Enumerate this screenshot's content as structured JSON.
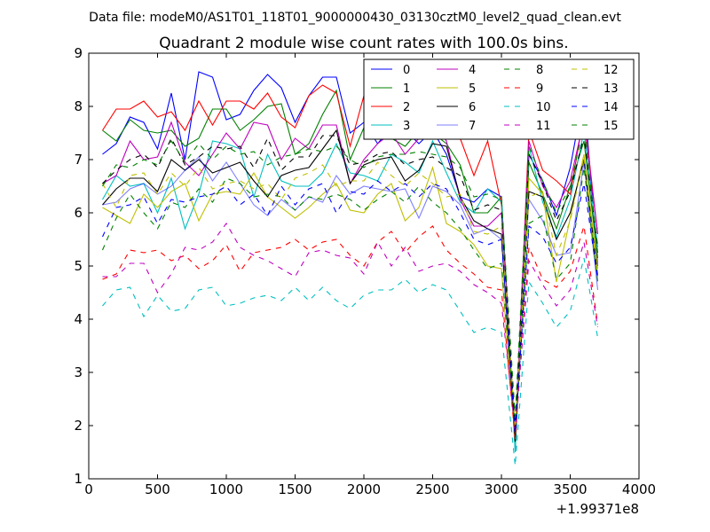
{
  "suptitle": "Data file: modeM0/AS1T01_118T01_9000000430_03130cztM0_level2_quad_clean.evt",
  "chart_data": {
    "type": "line",
    "title": "Quadrant 2 module wise count rates with 100.0s bins.",
    "xlabel": "",
    "ylabel": "",
    "x_offset_label": "+1.99371e8",
    "xlim": [
      0,
      4000
    ],
    "ylim": [
      1,
      9
    ],
    "x_ticks": [
      0,
      500,
      1000,
      1500,
      2000,
      2500,
      3000,
      3500,
      4000
    ],
    "y_ticks": [
      1,
      2,
      3,
      4,
      5,
      6,
      7,
      8,
      9
    ],
    "grid": false,
    "legend_position": "top-right",
    "x": [
      100,
      200,
      300,
      400,
      500,
      600,
      700,
      800,
      900,
      1000,
      1100,
      1200,
      1300,
      1400,
      1500,
      1600,
      1700,
      1800,
      1900,
      2000,
      2100,
      2200,
      2300,
      2400,
      2500,
      2600,
      2700,
      2800,
      2900,
      3000,
      3100,
      3200,
      3300,
      3400,
      3500,
      3600,
      3700
    ],
    "series": [
      {
        "name": "0",
        "color": "#0000ff",
        "dash": "solid",
        "values": [
          7.1,
          7.3,
          7.8,
          7.7,
          7.2,
          8.25,
          7.0,
          8.65,
          8.55,
          7.75,
          7.85,
          8.3,
          8.6,
          8.35,
          7.7,
          8.2,
          8.55,
          8.55,
          7.5,
          7.7,
          7.3,
          7.6,
          7.55,
          7.3,
          7.55,
          7.1,
          6.3,
          6.2,
          6.45,
          6.3,
          1.55,
          7.1,
          6.6,
          5.95,
          6.85,
          8.25,
          5.0
        ]
      },
      {
        "name": "1",
        "color": "#008000",
        "dash": "solid",
        "values": [
          7.55,
          7.35,
          7.75,
          7.55,
          7.5,
          7.55,
          7.25,
          7.4,
          7.95,
          7.95,
          7.55,
          7.75,
          8.0,
          8.05,
          7.1,
          7.3,
          7.85,
          8.3,
          7.0,
          7.6,
          7.7,
          7.4,
          7.25,
          7.55,
          7.5,
          7.3,
          6.9,
          6.0,
          6.0,
          6.3,
          1.65,
          6.95,
          6.35,
          5.7,
          6.5,
          7.35,
          5.15
        ]
      },
      {
        "name": "2",
        "color": "#ff0000",
        "dash": "solid",
        "values": [
          7.55,
          7.95,
          7.95,
          8.1,
          7.8,
          7.9,
          7.55,
          8.1,
          7.65,
          8.1,
          8.1,
          7.95,
          8.25,
          7.8,
          7.6,
          8.2,
          8.4,
          8.25,
          7.25,
          8.2,
          7.4,
          7.75,
          7.45,
          7.7,
          7.75,
          7.6,
          7.4,
          6.7,
          7.35,
          6.15,
          1.6,
          7.55,
          6.8,
          6.6,
          6.35,
          7.85,
          5.6
        ]
      },
      {
        "name": "3",
        "color": "#00bfbf",
        "dash": "solid",
        "values": [
          6.25,
          6.7,
          6.5,
          6.55,
          6.0,
          6.65,
          5.7,
          6.35,
          7.35,
          7.3,
          7.2,
          6.3,
          7.1,
          6.6,
          6.5,
          6.5,
          6.75,
          7.3,
          6.75,
          6.7,
          6.6,
          7.1,
          6.95,
          6.75,
          7.35,
          6.75,
          6.2,
          6.0,
          6.45,
          6.2,
          1.5,
          7.25,
          6.2,
          5.55,
          6.25,
          7.55,
          5.35
        ]
      },
      {
        "name": "4",
        "color": "#bf00bf",
        "dash": "solid",
        "values": [
          6.55,
          6.7,
          7.35,
          7.0,
          7.05,
          7.7,
          6.95,
          6.7,
          7.1,
          7.5,
          7.2,
          7.7,
          7.65,
          7.0,
          7.4,
          7.2,
          7.65,
          7.65,
          6.55,
          7.0,
          7.3,
          7.5,
          7.1,
          7.4,
          7.7,
          7.35,
          6.25,
          5.75,
          5.75,
          6.0,
          1.85,
          7.35,
          6.5,
          6.1,
          6.6,
          7.75,
          5.6
        ]
      },
      {
        "name": "5",
        "color": "#bfbf00",
        "dash": "solid",
        "values": [
          6.1,
          5.95,
          5.8,
          6.35,
          6.1,
          6.4,
          6.55,
          5.85,
          6.35,
          6.4,
          6.35,
          6.75,
          6.3,
          6.1,
          5.9,
          6.1,
          6.35,
          6.55,
          6.05,
          6.0,
          6.35,
          6.55,
          5.85,
          6.1,
          6.85,
          5.8,
          5.65,
          5.4,
          5.0,
          4.95,
          1.7,
          6.65,
          6.35,
          4.7,
          5.9,
          7.1,
          4.95
        ]
      },
      {
        "name": "6",
        "color": "#000000",
        "dash": "solid",
        "values": [
          6.15,
          6.45,
          6.65,
          6.65,
          6.4,
          7.0,
          6.8,
          7.0,
          6.75,
          6.85,
          6.95,
          6.6,
          6.3,
          6.7,
          6.8,
          6.85,
          7.2,
          7.55,
          6.55,
          6.9,
          7.0,
          7.05,
          6.6,
          6.8,
          7.3,
          7.25,
          6.3,
          5.85,
          5.7,
          5.6,
          1.7,
          6.4,
          6.3,
          5.5,
          6.0,
          7.0,
          4.8
        ]
      },
      {
        "name": "7",
        "color": "#0000ff",
        "dash": "solid",
        "lighter": true,
        "values": [
          6.15,
          6.2,
          6.45,
          6.55,
          6.35,
          6.5,
          6.8,
          7.05,
          6.6,
          6.95,
          6.55,
          6.15,
          5.95,
          6.25,
          6.05,
          6.3,
          6.2,
          6.7,
          6.35,
          6.5,
          6.45,
          6.4,
          6.45,
          5.9,
          6.5,
          6.4,
          6.15,
          5.6,
          5.7,
          5.5,
          2.0,
          6.25,
          5.85,
          5.2,
          5.25,
          6.95,
          4.55
        ]
      },
      {
        "name": "8",
        "color": "#008000",
        "dash": "dashed",
        "values": [
          5.3,
          5.9,
          6.35,
          6.0,
          5.7,
          6.2,
          6.1,
          6.45,
          6.2,
          6.65,
          6.55,
          6.3,
          6.35,
          6.3,
          6.05,
          6.3,
          6.25,
          6.35,
          6.25,
          6.05,
          6.25,
          6.4,
          6.2,
          6.5,
          6.2,
          6.0,
          5.7,
          5.3,
          4.95,
          5.05,
          1.95,
          5.8,
          5.95,
          4.75,
          5.05,
          6.85,
          4.7
        ]
      },
      {
        "name": "9",
        "color": "#ff0000",
        "dash": "dashed",
        "values": [
          4.75,
          4.85,
          5.3,
          5.25,
          5.3,
          5.1,
          5.2,
          4.95,
          5.1,
          5.4,
          4.9,
          5.25,
          5.3,
          5.35,
          5.5,
          5.3,
          5.45,
          5.5,
          5.2,
          5.0,
          5.45,
          5.65,
          5.25,
          5.55,
          5.75,
          5.3,
          5.05,
          4.85,
          4.6,
          4.55,
          1.75,
          5.35,
          4.75,
          4.6,
          4.9,
          5.75,
          3.9
        ]
      },
      {
        "name": "10",
        "color": "#00bfbf",
        "dash": "dashed",
        "values": [
          4.25,
          4.55,
          4.6,
          4.05,
          4.45,
          4.15,
          4.2,
          4.55,
          4.6,
          4.25,
          4.3,
          4.4,
          4.45,
          4.35,
          4.6,
          4.35,
          4.6,
          4.35,
          4.2,
          4.45,
          4.55,
          4.55,
          4.75,
          4.5,
          4.65,
          4.55,
          4.15,
          3.75,
          3.85,
          3.75,
          1.25,
          4.7,
          4.3,
          3.85,
          4.15,
          5.15,
          3.65
        ]
      },
      {
        "name": "11",
        "color": "#bf00bf",
        "dash": "dashed",
        "values": [
          4.8,
          4.8,
          5.05,
          5.05,
          4.5,
          4.85,
          5.35,
          5.3,
          5.45,
          5.8,
          5.35,
          5.2,
          5.1,
          4.95,
          4.8,
          5.25,
          5.3,
          5.2,
          5.15,
          4.85,
          5.45,
          5.0,
          5.35,
          4.9,
          5.0,
          5.05,
          4.9,
          4.65,
          4.5,
          4.3,
          1.9,
          5.1,
          4.65,
          4.25,
          4.55,
          5.45,
          3.85
        ]
      },
      {
        "name": "12",
        "color": "#bfbf00",
        "dash": "dashed",
        "values": [
          6.55,
          6.1,
          6.7,
          6.75,
          6.35,
          6.75,
          6.5,
          6.85,
          6.45,
          6.55,
          6.6,
          6.45,
          6.55,
          6.25,
          6.65,
          6.75,
          6.9,
          6.5,
          6.6,
          6.6,
          6.95,
          6.7,
          6.5,
          6.75,
          6.55,
          6.3,
          6.35,
          5.65,
          5.6,
          5.75,
          1.95,
          6.3,
          6.4,
          5.2,
          5.85,
          7.05,
          4.8
        ]
      },
      {
        "name": "13",
        "color": "#000000",
        "dash": "dashed",
        "values": [
          6.55,
          6.8,
          7.0,
          7.1,
          6.85,
          7.4,
          6.9,
          7.05,
          7.25,
          7.2,
          7.25,
          6.85,
          7.4,
          6.8,
          7.05,
          7.05,
          7.45,
          7.45,
          6.9,
          6.95,
          7.1,
          7.15,
          6.9,
          7.0,
          7.05,
          6.85,
          6.7,
          6.05,
          6.15,
          6.05,
          1.95,
          7.1,
          6.55,
          5.85,
          6.4,
          7.45,
          5.35
        ]
      },
      {
        "name": "14",
        "color": "#0000ff",
        "dash": "dashed",
        "values": [
          5.55,
          6.1,
          6.15,
          6.3,
          5.8,
          6.25,
          6.2,
          6.3,
          6.35,
          6.5,
          6.15,
          6.35,
          5.95,
          6.5,
          6.15,
          6.45,
          6.55,
          6.0,
          6.4,
          6.35,
          6.6,
          6.4,
          6.55,
          6.3,
          6.55,
          6.45,
          6.0,
          5.5,
          5.4,
          5.5,
          1.85,
          5.75,
          5.55,
          5.05,
          5.35,
          6.55,
          4.75
        ]
      },
      {
        "name": "15",
        "color": "#008000",
        "dash": "dashed",
        "values": [
          6.5,
          6.9,
          6.85,
          7.0,
          6.9,
          7.35,
          6.95,
          7.3,
          7.0,
          7.25,
          7.1,
          7.15,
          6.9,
          7.05,
          7.1,
          7.2,
          7.15,
          7.25,
          7.0,
          6.85,
          7.05,
          7.1,
          7.1,
          7.15,
          7.1,
          7.05,
          6.85,
          6.3,
          6.35,
          6.25,
          2.15,
          7.25,
          6.6,
          6.0,
          6.5,
          7.65,
          5.25
        ]
      }
    ]
  }
}
